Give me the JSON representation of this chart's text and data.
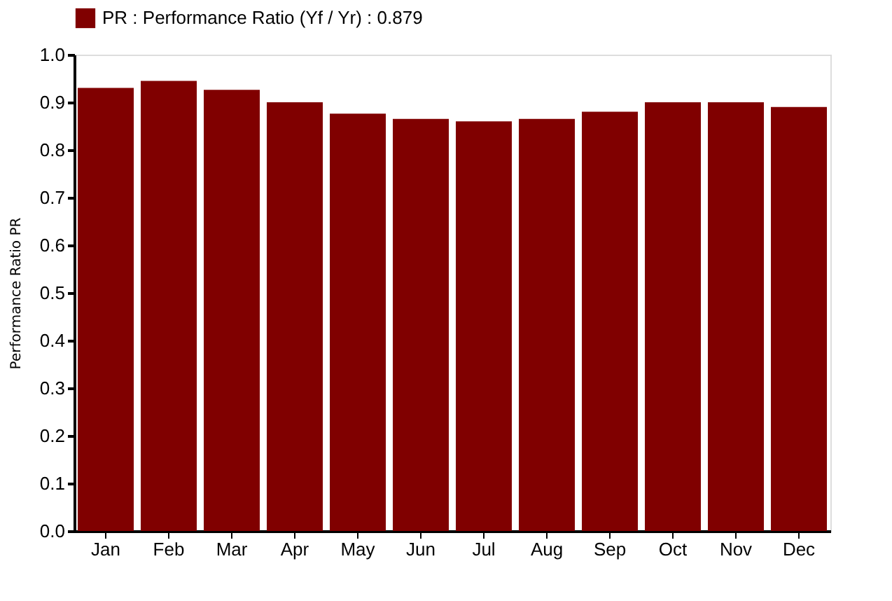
{
  "chart_data": {
    "type": "bar",
    "ylabel": "Performance  Ratio  PR",
    "categories": [
      "Jan",
      "Feb",
      "Mar",
      "Apr",
      "May",
      "Jun",
      "Jul",
      "Aug",
      "Sep",
      "Oct",
      "Nov",
      "Dec"
    ],
    "series": [
      {
        "name": "PR : Performance Ratio (Yf / Yr) :  0.879",
        "color": "#800000",
        "values": [
          0.93,
          0.945,
          0.926,
          0.9,
          0.876,
          0.865,
          0.86,
          0.865,
          0.88,
          0.9,
          0.9,
          0.89
        ]
      }
    ],
    "ylim": [
      0,
      1.0
    ],
    "yticks": [
      {
        "value": 0,
        "label": "0.0"
      },
      0.1,
      0.2,
      0.3,
      0.4,
      0.5,
      0.6,
      0.7,
      0.8,
      0.9,
      {
        "value": 1,
        "label": "1.0"
      }
    ],
    "grid": false,
    "legend": "top"
  }
}
